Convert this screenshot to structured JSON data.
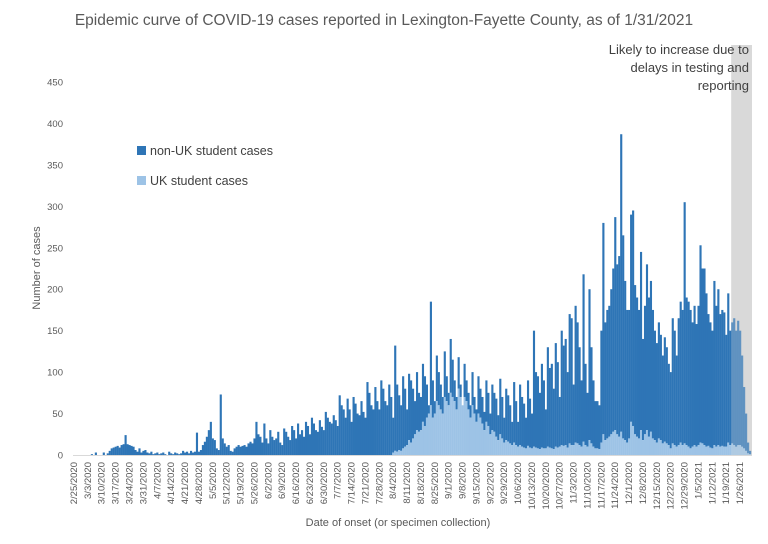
{
  "chart_data": {
    "type": "bar",
    "stacked": true,
    "title": "Epidemic curve of COVID-19 cases reported in Lexington-Fayette County, as of 1/31/2021",
    "xlabel": "Date of onset (or specimen collection)",
    "ylabel": "Number of cases",
    "ylim": [
      0,
      450
    ],
    "yticks": [
      0,
      50,
      100,
      150,
      200,
      250,
      300,
      350,
      400,
      450
    ],
    "grid": false,
    "legend_placement": "upper-left",
    "x_start": "2/25/2020",
    "x_end": "1/31/2021",
    "x_interval": "daily",
    "xtick_labels": [
      "2/25/2020",
      "3/3/2020",
      "3/10/2020",
      "3/17/2020",
      "3/24/2020",
      "3/31/2020",
      "4/7/2020",
      "4/14/2020",
      "4/21/2020",
      "4/28/2020",
      "5/5/2020",
      "5/12/2020",
      "5/19/2020",
      "5/26/2020",
      "6/2/2020",
      "6/9/2020",
      "6/16/2020",
      "6/23/2020",
      "6/30/2020",
      "7/7/2020",
      "7/14/2020",
      "7/21/2020",
      "7/28/2020",
      "8/4/2020",
      "8/11/2020",
      "8/18/2020",
      "8/25/2020",
      "9/1/2020",
      "9/8/2020",
      "9/15/2020",
      "9/22/2020",
      "9/29/2020",
      "10/6/2020",
      "10/13/2020",
      "10/20/2020",
      "10/27/2020",
      "11/3/2020",
      "11/10/2020",
      "11/17/2020",
      "11/24/2020",
      "12/1/2020",
      "12/8/2020",
      "12/15/2020",
      "12/22/2020",
      "12/29/2020",
      "1/5/2021",
      "1/12/2021",
      "1/19/2021",
      "1/26/2021"
    ],
    "series": [
      {
        "name": "UK student cases",
        "color": "#9dc3e6",
        "values": [
          0,
          0,
          0,
          0,
          0,
          0,
          0,
          0,
          0,
          0,
          0,
          0,
          0,
          0,
          0,
          0,
          0,
          0,
          0,
          0,
          0,
          0,
          0,
          0,
          0,
          0,
          0,
          0,
          0,
          0,
          0,
          0,
          0,
          0,
          0,
          0,
          0,
          0,
          0,
          0,
          0,
          0,
          0,
          0,
          0,
          0,
          0,
          0,
          0,
          0,
          0,
          0,
          0,
          0,
          0,
          0,
          0,
          0,
          0,
          0,
          0,
          0,
          0,
          0,
          0,
          0,
          0,
          0,
          0,
          0,
          0,
          0,
          0,
          0,
          0,
          0,
          0,
          0,
          0,
          0,
          0,
          0,
          0,
          0,
          0,
          0,
          0,
          0,
          0,
          0,
          0,
          0,
          0,
          0,
          0,
          0,
          0,
          0,
          0,
          0,
          0,
          0,
          0,
          0,
          0,
          0,
          0,
          0,
          0,
          0,
          0,
          0,
          0,
          0,
          0,
          0,
          0,
          0,
          0,
          0,
          0,
          0,
          0,
          0,
          0,
          0,
          0,
          0,
          0,
          0,
          0,
          0,
          0,
          0,
          0,
          0,
          0,
          0,
          0,
          0,
          0,
          0,
          0,
          0,
          0,
          0,
          0,
          0,
          0,
          0,
          0,
          0,
          0,
          0,
          0,
          0,
          0,
          0,
          0,
          0,
          0,
          3,
          5,
          4,
          6,
          5,
          8,
          10,
          12,
          18,
          15,
          20,
          25,
          30,
          28,
          30,
          40,
          35,
          45,
          50,
          60,
          45,
          50,
          65,
          60,
          55,
          50,
          70,
          65,
          60,
          75,
          70,
          65,
          55,
          80,
          70,
          60,
          70,
          65,
          55,
          45,
          60,
          50,
          40,
          50,
          45,
          38,
          30,
          40,
          35,
          25,
          30,
          28,
          22,
          18,
          25,
          20,
          15,
          18,
          16,
          14,
          12,
          15,
          12,
          10,
          12,
          10,
          9,
          8,
          11,
          9,
          8,
          10,
          9,
          8,
          7,
          9,
          8,
          8,
          10,
          9,
          8,
          7,
          10,
          9,
          10,
          12,
          11,
          12,
          9,
          14,
          12,
          12,
          15,
          14,
          12,
          10,
          16,
          12,
          10,
          18,
          14,
          10,
          8,
          8,
          7,
          15,
          25,
          18,
          20,
          22,
          25,
          28,
          30,
          25,
          22,
          28,
          20,
          18,
          15,
          20,
          40,
          35,
          25,
          22,
          20,
          30,
          18,
          25,
          30,
          22,
          28,
          20,
          18,
          15,
          20,
          18,
          14,
          16,
          14,
          12,
          8,
          14,
          12,
          10,
          12,
          15,
          12,
          14,
          12,
          10,
          8,
          10,
          12,
          10,
          12,
          15,
          14,
          12,
          10,
          11,
          9,
          8,
          12,
          10,
          12,
          10,
          11,
          10,
          10,
          15,
          12,
          14,
          12,
          10,
          12,
          12,
          10,
          8,
          5,
          2,
          1
        ]
      },
      {
        "name": "non-UK student cases",
        "color": "#2e75b6",
        "values": [
          0,
          0,
          0,
          0,
          0,
          0,
          0,
          0,
          0,
          1,
          0,
          3,
          0,
          0,
          0,
          3,
          0,
          2,
          5,
          8,
          9,
          10,
          11,
          9,
          12,
          13,
          24,
          13,
          12,
          11,
          10,
          6,
          4,
          8,
          3,
          5,
          6,
          3,
          2,
          4,
          1,
          2,
          3,
          1,
          2,
          3,
          1,
          0,
          4,
          2,
          1,
          3,
          2,
          1,
          2,
          5,
          3,
          4,
          2,
          5,
          3,
          4,
          27,
          4,
          6,
          12,
          16,
          22,
          30,
          40,
          20,
          18,
          8,
          6,
          73,
          20,
          14,
          10,
          12,
          5,
          4,
          8,
          10,
          12,
          10,
          11,
          12,
          10,
          14,
          16,
          14,
          20,
          40,
          25,
          22,
          15,
          38,
          20,
          14,
          30,
          22,
          18,
          20,
          28,
          15,
          12,
          32,
          28,
          22,
          18,
          35,
          30,
          20,
          38,
          25,
          30,
          22,
          40,
          35,
          25,
          45,
          38,
          30,
          28,
          42,
          34,
          30,
          52,
          45,
          40,
          38,
          48,
          42,
          35,
          72,
          60,
          55,
          45,
          68,
          55,
          40,
          70,
          62,
          50,
          48,
          65,
          52,
          45,
          88,
          75,
          60,
          55,
          82,
          65,
          55,
          90,
          80,
          65,
          60,
          85,
          70,
          42,
          127,
          81,
          66,
          55,
          87,
          70,
          43,
          80,
          75,
          60,
          40,
          70,
          47,
          40,
          70,
          60,
          40,
          10,
          125,
          45,
          15,
          55,
          40,
          30,
          20,
          55,
          30,
          15,
          65,
          45,
          25,
          15,
          38,
          15,
          0,
          40,
          25,
          20,
          15,
          40,
          20,
          15,
          45,
          35,
          32,
          22,
          50,
          40,
          25,
          55,
          47,
          46,
          30,
          67,
          50,
          30,
          62,
          56,
          46,
          28,
          73,
          53,
          30,
          73,
          60,
          53,
          37,
          79,
          59,
          42,
          140,
          91,
          87,
          68,
          101,
          82,
          47,
          120,
          96,
          102,
          73,
          125,
          103,
          60,
          138,
          121,
          128,
          91,
          156,
          153,
          73,
          165,
          146,
          118,
          80,
          202,
          98,
          65,
          182,
          116,
          80,
          57,
          57,
          53,
          135,
          255,
          142,
          155,
          158,
          175,
          197,
          257,
          205,
          218,
          359,
          245,
          192,
          160,
          155,
          250,
          260,
          180,
          168,
          155,
          215,
          122,
          155,
          200,
          168,
          182,
          155,
          132,
          120,
          140,
          127,
          106,
          126,
          116,
          98,
          92,
          151,
          138,
          110,
          153,
          170,
          163,
          291,
          178,
          175,
          167,
          150,
          168,
          148,
          168,
          238,
          211,
          213,
          185,
          159,
          151,
          142,
          198,
          170,
          188,
          160,
          164,
          162,
          135,
          180,
          138,
          146,
          153,
          140,
          150,
          138,
          110,
          74,
          45,
          13,
          4
        ]
      }
    ],
    "annotations": [
      {
        "text_lines": [
          "Likely to increase due to",
          "delays in testing and",
          "reporting"
        ],
        "shaded_from": "1/22/2021",
        "shaded_to": "1/31/2021",
        "shade_color": "#d9d9d9"
      }
    ]
  }
}
